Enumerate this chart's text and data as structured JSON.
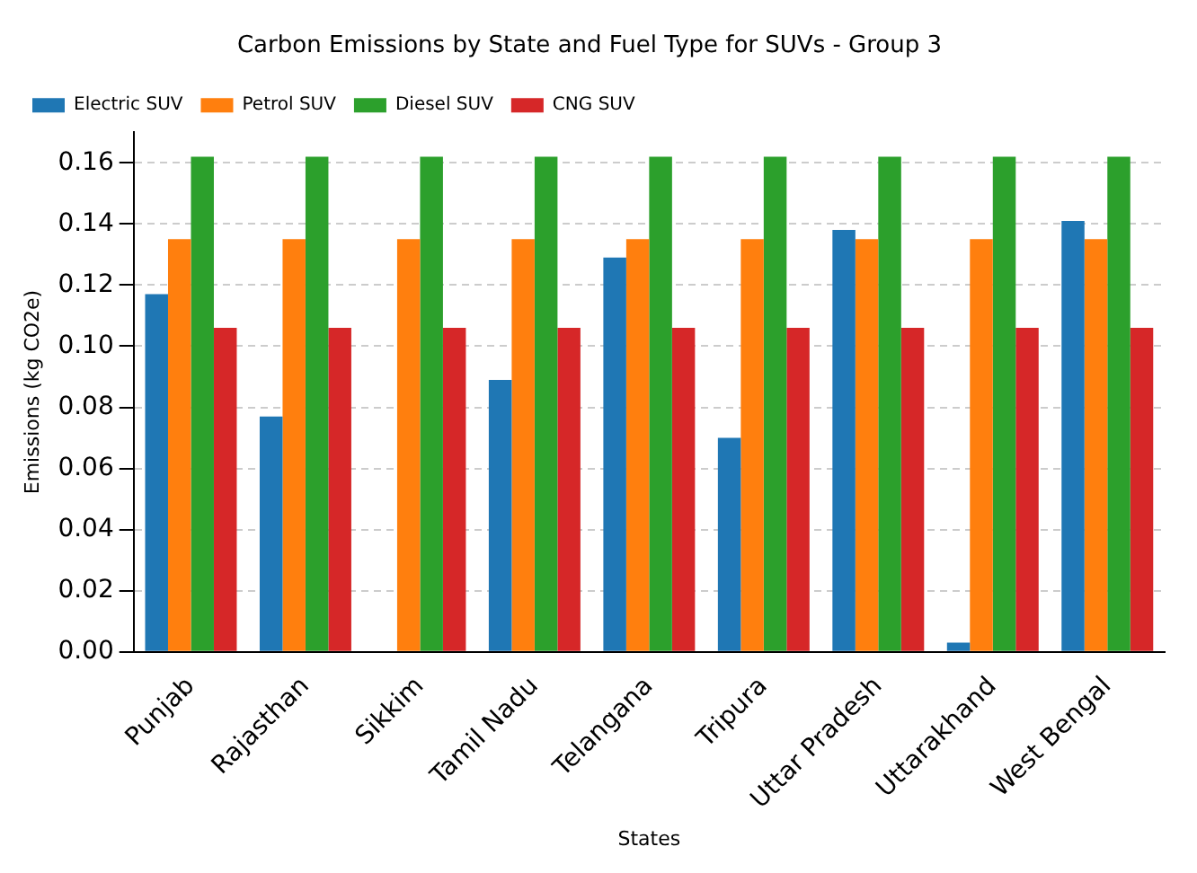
{
  "chart_data": {
    "type": "bar",
    "title": "Carbon Emissions by State and Fuel Type for SUVs - Group 3",
    "xlabel": "States",
    "ylabel": "Emissions (kg CO2e)",
    "categories": [
      "Punjab",
      "Rajasthan",
      "Sikkim",
      "Tamil Nadu",
      "Telangana",
      "Tripura",
      "Uttar Pradesh",
      "Uttarakhand",
      "West Bengal"
    ],
    "series": [
      {
        "name": "Electric SUV",
        "color": "#1f77b4",
        "values": [
          0.117,
          0.077,
          0,
          0.089,
          0.129,
          0.07,
          0.138,
          0.003,
          0.141
        ]
      },
      {
        "name": "Petrol SUV",
        "color": "#ff7f0e",
        "values": [
          0.135,
          0.135,
          0.135,
          0.135,
          0.135,
          0.135,
          0.135,
          0.135,
          0.135
        ]
      },
      {
        "name": "Diesel SUV",
        "color": "#2ca02c",
        "values": [
          0.162,
          0.162,
          0.162,
          0.162,
          0.162,
          0.162,
          0.162,
          0.162,
          0.162
        ]
      },
      {
        "name": "CNG SUV",
        "color": "#d62728",
        "values": [
          0.106,
          0.106,
          0.106,
          0.106,
          0.106,
          0.106,
          0.106,
          0.106,
          0.106
        ]
      }
    ],
    "ylim": [
      0,
      0.17
    ],
    "yticks": [
      {
        "value": 0,
        "label": "0.00"
      },
      0.02,
      0.04,
      0.06,
      0.08,
      {
        "value": 0.1,
        "label": "0.10"
      },
      0.12,
      0.14,
      0.16
    ],
    "grid": "y",
    "legend": "top left"
  }
}
